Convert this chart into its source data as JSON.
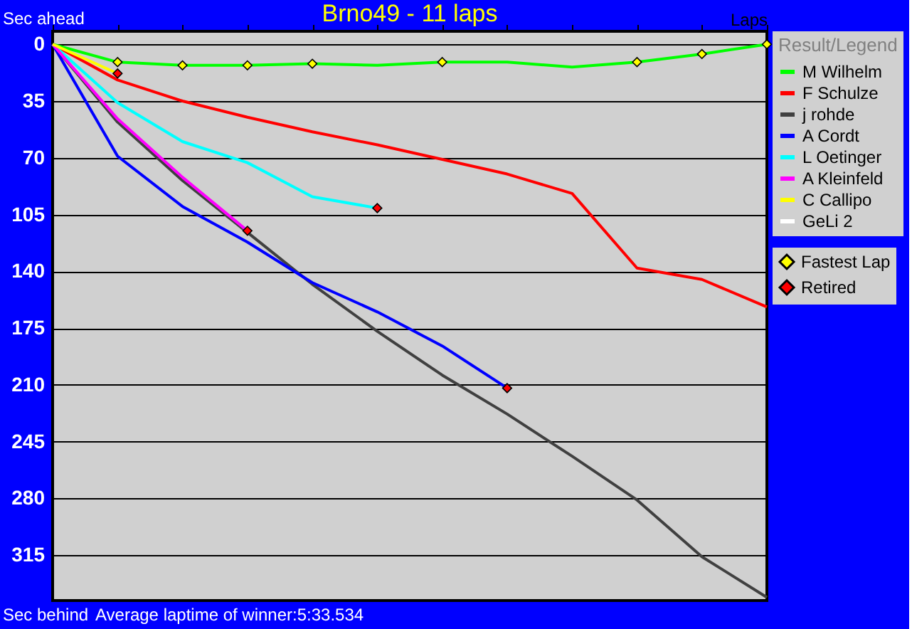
{
  "chart_data": {
    "type": "line",
    "title": "Brno49 - 11 laps",
    "xlabel": "Laps",
    "legend_title": "Result/Legend",
    "categories": [
      null,
      null,
      null,
      null,
      null,
      null,
      null,
      null,
      null,
      null,
      null,
      null
    ],
    "ylim": [
      343,
      -8
    ],
    "yticks": [
      0,
      35,
      70,
      105,
      140,
      175,
      210,
      245,
      280,
      315
    ],
    "tick_labels": "y",
    "grid": "y",
    "legend": "right",
    "line_style": "solid",
    "series": [
      {
        "name": "M Wilhelm",
        "color": "#00ff00",
        "values": [
          0,
          11,
          13,
          13,
          12,
          13,
          11,
          11,
          14,
          11,
          6,
          0
        ]
      },
      {
        "name": "F Schulze",
        "color": "#ff0000",
        "values": [
          0,
          22,
          35,
          45,
          54,
          62,
          71,
          80,
          92,
          138,
          145,
          162
        ]
      },
      {
        "name": "j rohde",
        "color": "#404040",
        "values": [
          0,
          48,
          84,
          116,
          148,
          177,
          204,
          228,
          254,
          281,
          316,
          341
        ]
      },
      {
        "name": "A Cordt",
        "color": "#0000ff",
        "values": [
          0,
          69,
          100,
          122,
          147,
          165,
          186,
          212,
          null,
          null,
          null,
          null
        ]
      },
      {
        "name": "L Oetinger",
        "color": "#00ffff",
        "values": [
          0,
          36,
          60,
          73,
          94,
          101,
          null,
          null,
          null,
          null,
          null,
          null
        ]
      },
      {
        "name": "A Kleinfeld",
        "color": "#ff00ff",
        "values": [
          0,
          46,
          82,
          115,
          null,
          null,
          null,
          null,
          null,
          null,
          null,
          null
        ]
      },
      {
        "name": "C Callipo",
        "color": "#ffff00",
        "values": [
          0,
          18,
          null,
          null,
          null,
          null,
          null,
          null,
          null,
          null,
          null,
          null
        ]
      },
      {
        "name": "GeLi 2",
        "color": "#ffffff",
        "values": [
          null,
          null,
          null,
          null,
          null,
          null,
          null,
          null,
          null,
          null,
          null,
          null
        ]
      },
      {
        "name": "Fastest Lap",
        "type": "scatter",
        "marker": "diamond",
        "color": "#ffff00",
        "values": [
          null,
          11,
          13,
          13,
          12,
          null,
          11,
          null,
          null,
          11,
          6,
          0
        ]
      },
      {
        "name": "Retired",
        "type": "scatter",
        "marker": "diamond",
        "color": "#ff0000",
        "values": [
          null,
          18,
          null,
          115,
          null,
          101,
          null,
          212,
          null,
          null,
          null,
          null
        ]
      }
    ],
    "annotations": [
      "Sec ahead",
      "Sec behind",
      "Average laptime of winner:5:33.534"
    ]
  }
}
